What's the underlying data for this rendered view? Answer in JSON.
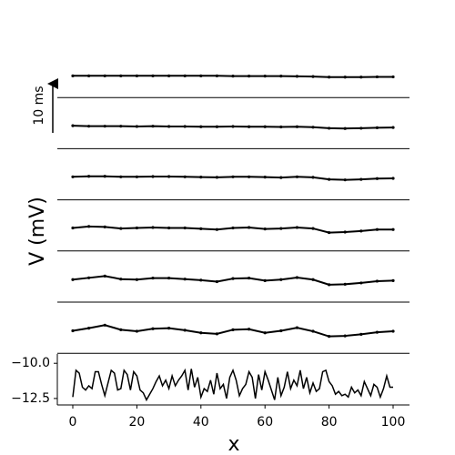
{
  "chart_data": {
    "type": "line",
    "xlabel": "x",
    "ylabel": "V (mV)",
    "scale_bar_label": "10 ms",
    "color": "#000000",
    "xlim": [
      -4.83,
      105.11
    ],
    "xticks": [
      0,
      20,
      40,
      60,
      80,
      100
    ],
    "ylim": [
      -12.96,
      -9.34
    ],
    "yticks": [
      {
        "value": -10,
        "label": "−10.0"
      },
      {
        "value": -12.5,
        "label": "−12.5"
      }
    ],
    "x": [
      0,
      1,
      2,
      3,
      4,
      5,
      6,
      7,
      8,
      9,
      10,
      11,
      12,
      13,
      14,
      15,
      16,
      17,
      18,
      19,
      20,
      21,
      22,
      23,
      24,
      25,
      26,
      27,
      28,
      29,
      30,
      31,
      32,
      33,
      34,
      35,
      36,
      37,
      38,
      39,
      40,
      41,
      42,
      43,
      44,
      45,
      46,
      47,
      48,
      49,
      50,
      51,
      52,
      53,
      54,
      55,
      56,
      57,
      58,
      59,
      60,
      61,
      62,
      63,
      64,
      65,
      66,
      67,
      68,
      69,
      70,
      71,
      72,
      73,
      74,
      75,
      76,
      77,
      78,
      79,
      80,
      81,
      82,
      83,
      84,
      85,
      86,
      87,
      88,
      89,
      90,
      91,
      92,
      93,
      94,
      95,
      96,
      97,
      98,
      99,
      100
    ],
    "values": [
      -12.4,
      -10.5,
      -10.7,
      -11.7,
      -11.9,
      -11.6,
      -11.8,
      -10.6,
      -10.6,
      -11.5,
      -12.3,
      -11.4,
      -10.5,
      -10.7,
      -11.9,
      -11.8,
      -10.5,
      -10.8,
      -11.9,
      -10.6,
      -10.9,
      -11.9,
      -12.1,
      -12.6,
      -12.2,
      -11.8,
      -11.3,
      -10.9,
      -11.6,
      -11.2,
      -11.8,
      -10.9,
      -11.6,
      -11.2,
      -10.9,
      -10.5,
      -11.9,
      -10.4,
      -11.7,
      -11.0,
      -12.4,
      -11.8,
      -12.0,
      -11.2,
      -12.2,
      -10.7,
      -11.8,
      -11.5,
      -12.5,
      -11.0,
      -10.5,
      -11.2,
      -12.3,
      -11.8,
      -11.5,
      -10.6,
      -11.0,
      -12.5,
      -10.8,
      -11.9,
      -10.6,
      -11.2,
      -11.9,
      -12.6,
      -11.0,
      -12.3,
      -11.7,
      -10.6,
      -11.8,
      -11.2,
      -11.6,
      -10.5,
      -11.8,
      -11.0,
      -12.1,
      -11.4,
      -12.0,
      -11.8,
      -10.6,
      -10.5,
      -11.3,
      -11.6,
      -12.2,
      -12.0,
      -12.3,
      -12.2,
      -12.4,
      -11.7,
      -12.1,
      -11.9,
      -12.3,
      -11.3,
      -11.8,
      -12.3,
      -11.5,
      -11.7,
      -12.4,
      -11.8,
      -10.9,
      -11.7,
      -11.7
    ],
    "traces": {
      "x": [
        0,
        5,
        10,
        15,
        20,
        25,
        30,
        35,
        40,
        45,
        50,
        55,
        60,
        65,
        70,
        75,
        80,
        85,
        90,
        95,
        100
      ],
      "ylim": [
        -1,
        1
      ],
      "series": [
        {
          "values": [
            -0.15,
            -0.15,
            -0.15,
            -0.15,
            -0.15,
            -0.15,
            -0.15,
            -0.15,
            -0.15,
            -0.15,
            -0.16,
            -0.16,
            -0.16,
            -0.16,
            -0.17,
            -0.18,
            -0.2,
            -0.2,
            -0.2,
            -0.19,
            -0.19
          ]
        },
        {
          "values": [
            -0.1,
            -0.12,
            -0.12,
            -0.12,
            -0.13,
            -0.12,
            -0.13,
            -0.13,
            -0.14,
            -0.14,
            -0.13,
            -0.14,
            -0.14,
            -0.15,
            -0.14,
            -0.16,
            -0.2,
            -0.21,
            -0.2,
            -0.18,
            -0.17
          ]
        },
        {
          "values": [
            -0.1,
            -0.08,
            -0.08,
            -0.1,
            -0.1,
            -0.09,
            -0.09,
            -0.1,
            -0.11,
            -0.12,
            -0.1,
            -0.1,
            -0.11,
            -0.13,
            -0.1,
            -0.12,
            -0.2,
            -0.22,
            -0.2,
            -0.17,
            -0.16
          ]
        },
        {
          "values": [
            -0.1,
            -0.04,
            -0.06,
            -0.12,
            -0.1,
            -0.08,
            -0.1,
            -0.1,
            -0.13,
            -0.16,
            -0.1,
            -0.08,
            -0.14,
            -0.12,
            -0.08,
            -0.12,
            -0.28,
            -0.26,
            -0.22,
            -0.16,
            -0.16
          ]
        },
        {
          "values": [
            -0.12,
            -0.05,
            0.02,
            -0.1,
            -0.12,
            -0.06,
            -0.06,
            -0.1,
            -0.14,
            -0.2,
            -0.08,
            -0.06,
            -0.16,
            -0.12,
            -0.04,
            -0.12,
            -0.32,
            -0.3,
            -0.25,
            -0.18,
            -0.16
          ]
        },
        {
          "values": [
            -0.12,
            -0.02,
            0.1,
            -0.08,
            -0.14,
            -0.04,
            -0.02,
            -0.1,
            -0.2,
            -0.24,
            -0.08,
            -0.06,
            -0.2,
            -0.12,
            0.0,
            -0.14,
            -0.34,
            -0.32,
            -0.26,
            -0.18,
            -0.14
          ]
        }
      ]
    }
  }
}
